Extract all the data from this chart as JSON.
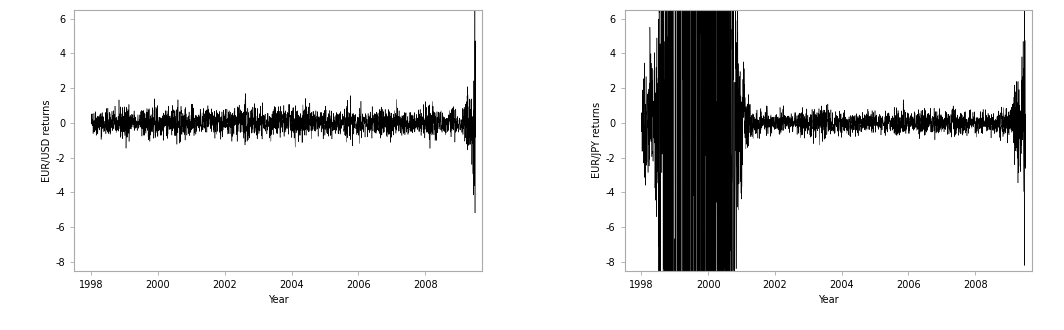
{
  "left_ylabel": "EUR/USD returns",
  "right_ylabel": "EUR/JPY returns",
  "xlabel": "Year",
  "ylim_left": [
    -8.5,
    6.5
  ],
  "ylim_right": [
    -8.5,
    6.5
  ],
  "yticks_left": [
    -8,
    -6,
    -4,
    -2,
    0,
    2,
    4,
    6
  ],
  "yticks_right": [
    -8,
    -6,
    -4,
    -2,
    0,
    2,
    4,
    6
  ],
  "xticks": [
    1998,
    2000,
    2002,
    2004,
    2006,
    2008
  ],
  "xlim": [
    1997.5,
    2009.7
  ],
  "start_year": 1998,
  "end_year": 2009.5,
  "n_obs": 2900,
  "line_color": "#000000",
  "bg_color": "#ffffff",
  "spine_color": "#aaaaaa",
  "linewidth": 0.35,
  "seed_usd": 42,
  "seed_jpy": 77,
  "figsize": [
    10.64,
    3.3
  ],
  "dpi": 100,
  "font_size_label": 7.0,
  "font_size_tick": 7.0
}
